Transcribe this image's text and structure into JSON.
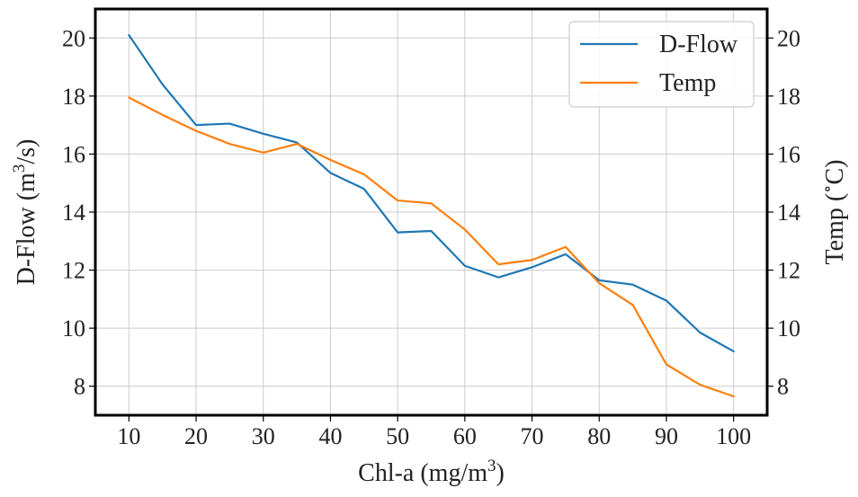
{
  "chart_data": {
    "type": "line",
    "title": "",
    "x": [
      10,
      15,
      20,
      25,
      30,
      35,
      40,
      45,
      50,
      55,
      60,
      65,
      70,
      75,
      80,
      85,
      90,
      95,
      100
    ],
    "xlim": [
      5,
      105
    ],
    "xticks": [
      10,
      20,
      30,
      40,
      50,
      60,
      70,
      80,
      90,
      100
    ],
    "xlabel": {
      "prefix": "Chl-a (mg/m",
      "sup": "3",
      "suffix": ")"
    },
    "ylim_left": [
      7,
      21
    ],
    "ylim_right": [
      7,
      21
    ],
    "yticks_left": [
      8,
      10,
      12,
      14,
      16,
      18,
      20
    ],
    "yticks_right": [
      8,
      10,
      12,
      14,
      16,
      18,
      20
    ],
    "ylabel_left": {
      "prefix": "D-Flow (m",
      "sup": "3",
      "suffix": "/s)"
    },
    "ylabel_right": {
      "prefix": "Temp (",
      "sup": "∘",
      "suffix": "C)"
    },
    "grid": true,
    "legend_position": "top-right",
    "series": [
      {
        "name": "D-Flow",
        "axis": "left",
        "color": "#1f77b4",
        "values": [
          20.1,
          18.4,
          17.0,
          17.05,
          16.7,
          16.4,
          15.35,
          14.8,
          13.3,
          13.35,
          12.15,
          11.75,
          12.1,
          12.55,
          11.65,
          11.5,
          10.95,
          9.85,
          9.2
        ]
      },
      {
        "name": "Temp",
        "axis": "right",
        "color": "#ff7f0e",
        "values": [
          17.95,
          17.35,
          16.8,
          16.35,
          16.05,
          16.35,
          15.8,
          15.3,
          14.4,
          14.3,
          13.4,
          12.2,
          12.35,
          12.8,
          11.55,
          10.8,
          8.75,
          8.05,
          7.65
        ]
      }
    ]
  }
}
